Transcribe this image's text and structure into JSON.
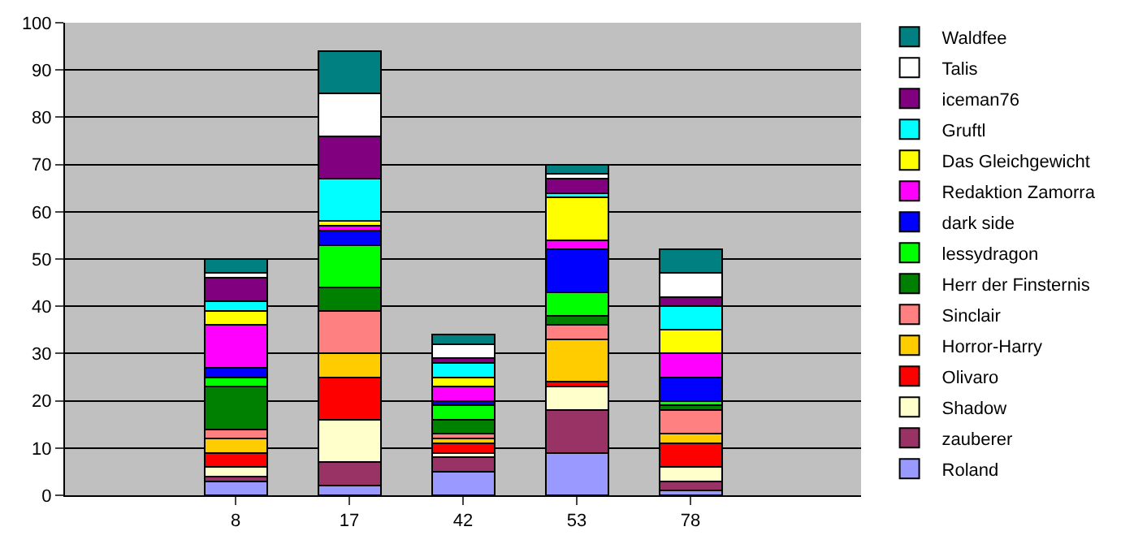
{
  "chart_data": {
    "type": "bar",
    "stacked": true,
    "categories": [
      null,
      "8",
      "17",
      "42",
      "53",
      "78",
      null
    ],
    "series": [
      {
        "name": "Roland",
        "color": "#9999ff",
        "values": [
          null,
          3,
          2,
          5,
          9,
          1,
          null
        ]
      },
      {
        "name": "zauberer",
        "color": "#993366",
        "values": [
          null,
          1,
          5,
          3,
          9,
          2,
          null
        ]
      },
      {
        "name": "Shadow",
        "color": "#ffffcc",
        "values": [
          null,
          2,
          9,
          1,
          5,
          3,
          null
        ]
      },
      {
        "name": "Olivaro",
        "color": "#ff0000",
        "values": [
          null,
          3,
          9,
          2,
          1,
          5,
          null
        ]
      },
      {
        "name": "Horror-Harry",
        "color": "#ffcc00",
        "values": [
          null,
          3,
          5,
          1,
          9,
          2,
          null
        ]
      },
      {
        "name": "Sinclair",
        "color": "#ff8080",
        "values": [
          null,
          2,
          9,
          1,
          3,
          5,
          null
        ]
      },
      {
        "name": "Herr der Finsternis",
        "color": "#008000",
        "values": [
          null,
          9,
          5,
          3,
          2,
          1,
          null
        ]
      },
      {
        "name": "lessydragon",
        "color": "#00ff00",
        "values": [
          null,
          2,
          9,
          3,
          5,
          1,
          null
        ]
      },
      {
        "name": "dark side",
        "color": "#0000ff",
        "values": [
          null,
          2,
          3,
          1,
          9,
          5,
          null
        ]
      },
      {
        "name": "Redaktion Zamorra",
        "color": "#ff00ff",
        "values": [
          null,
          9,
          1,
          3,
          2,
          5,
          null
        ]
      },
      {
        "name": "Das Gleichgewicht",
        "color": "#ffff00",
        "values": [
          null,
          3,
          1,
          2,
          9,
          5,
          null
        ]
      },
      {
        "name": "Gruftl",
        "color": "#00ffff",
        "values": [
          null,
          2,
          9,
          3,
          1,
          5,
          null
        ]
      },
      {
        "name": "iceman76",
        "color": "#800080",
        "values": [
          null,
          5,
          9,
          1,
          3,
          2,
          null
        ]
      },
      {
        "name": "Talis",
        "color": "#ffffff",
        "values": [
          null,
          1,
          9,
          3,
          1,
          5,
          null
        ]
      },
      {
        "name": "Waldfee",
        "color": "#008080",
        "values": [
          null,
          3,
          9,
          2,
          2,
          5,
          null
        ]
      }
    ],
    "ylim": [
      0,
      100
    ],
    "yticks": [
      0,
      10,
      20,
      30,
      40,
      50,
      60,
      70,
      80,
      90,
      100
    ],
    "grid": "y",
    "legend": "right"
  }
}
